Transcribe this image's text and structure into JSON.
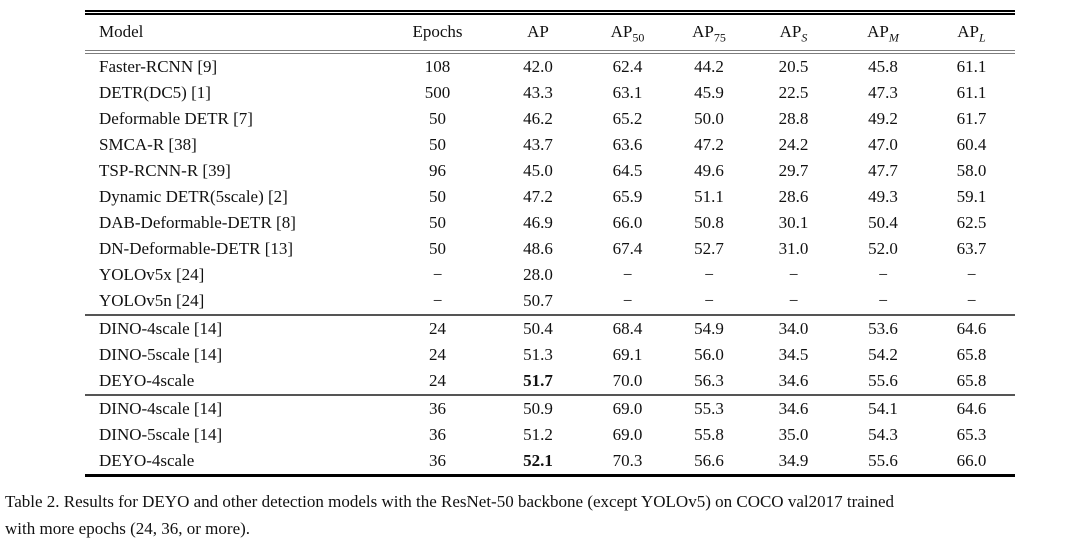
{
  "table": {
    "columns": [
      {
        "label": "Model"
      },
      {
        "label": "Epochs"
      },
      {
        "label": "AP"
      },
      {
        "label": "AP",
        "sub": "50",
        "sub_italic": false
      },
      {
        "label": "AP",
        "sub": "75",
        "sub_italic": false
      },
      {
        "label": "AP",
        "sub": "S",
        "sub_italic": true
      },
      {
        "label": "AP",
        "sub": "M",
        "sub_italic": true
      },
      {
        "label": "AP",
        "sub": "L",
        "sub_italic": true
      }
    ],
    "groups": [
      {
        "rows": [
          {
            "cells": [
              "Faster-RCNN [9]",
              "108",
              "42.0",
              "62.4",
              "44.2",
              "20.5",
              "45.8",
              "61.1"
            ]
          },
          {
            "cells": [
              "DETR(DC5) [1]",
              "500",
              "43.3",
              "63.1",
              "45.9",
              "22.5",
              "47.3",
              "61.1"
            ]
          },
          {
            "cells": [
              "Deformable DETR [7]",
              "50",
              "46.2",
              "65.2",
              "50.0",
              "28.8",
              "49.2",
              "61.7"
            ]
          },
          {
            "cells": [
              "SMCA-R [38]",
              "50",
              "43.7",
              "63.6",
              "47.2",
              "24.2",
              "47.0",
              "60.4"
            ]
          },
          {
            "cells": [
              "TSP-RCNN-R [39]",
              "96",
              "45.0",
              "64.5",
              "49.6",
              "29.7",
              "47.7",
              "58.0"
            ]
          },
          {
            "cells": [
              "Dynamic DETR(5scale) [2]",
              "50",
              "47.2",
              "65.9",
              "51.1",
              "28.6",
              "49.3",
              "59.1"
            ]
          },
          {
            "cells": [
              "DAB-Deformable-DETR [8]",
              "50",
              "46.9",
              "66.0",
              "50.8",
              "30.1",
              "50.4",
              "62.5"
            ]
          },
          {
            "cells": [
              "DN-Deformable-DETR [13]",
              "50",
              "48.6",
              "67.4",
              "52.7",
              "31.0",
              "52.0",
              "63.7"
            ]
          },
          {
            "cells": [
              "YOLOv5x [24]",
              "−",
              "28.0",
              "−",
              "−",
              "−",
              "−",
              "−"
            ]
          },
          {
            "cells": [
              "YOLOv5n [24]",
              "−",
              "50.7",
              "−",
              "−",
              "−",
              "−",
              "−"
            ]
          }
        ]
      },
      {
        "rows": [
          {
            "cells": [
              "DINO-4scale [14]",
              "24",
              "50.4",
              "68.4",
              "54.9",
              "34.0",
              "53.6",
              "64.6"
            ]
          },
          {
            "cells": [
              "DINO-5scale [14]",
              "24",
              "51.3",
              "69.1",
              "56.0",
              "34.5",
              "54.2",
              "65.8"
            ]
          },
          {
            "cells": [
              "DEYO-4scale",
              "24",
              "51.7",
              "70.0",
              "56.3",
              "34.6",
              "55.6",
              "65.8"
            ],
            "bold_cols": [
              2
            ]
          }
        ]
      },
      {
        "rows": [
          {
            "cells": [
              "DINO-4scale [14]",
              "36",
              "50.9",
              "69.0",
              "55.3",
              "34.6",
              "54.1",
              "64.6"
            ]
          },
          {
            "cells": [
              "DINO-5scale [14]",
              "36",
              "51.2",
              "69.0",
              "55.8",
              "35.0",
              "54.3",
              "65.3"
            ]
          },
          {
            "cells": [
              "DEYO-4scale",
              "36",
              "52.1",
              "70.3",
              "56.6",
              "34.9",
              "55.6",
              "66.0"
            ],
            "bold_cols": [
              2
            ]
          }
        ]
      }
    ]
  },
  "caption": {
    "lines": [
      "Table 2. Results for DEYO and other detection models with the ResNet-50 backbone (except YOLOv5) on COCO val2017 trained",
      "with more epochs (24, 36, or more)."
    ]
  }
}
